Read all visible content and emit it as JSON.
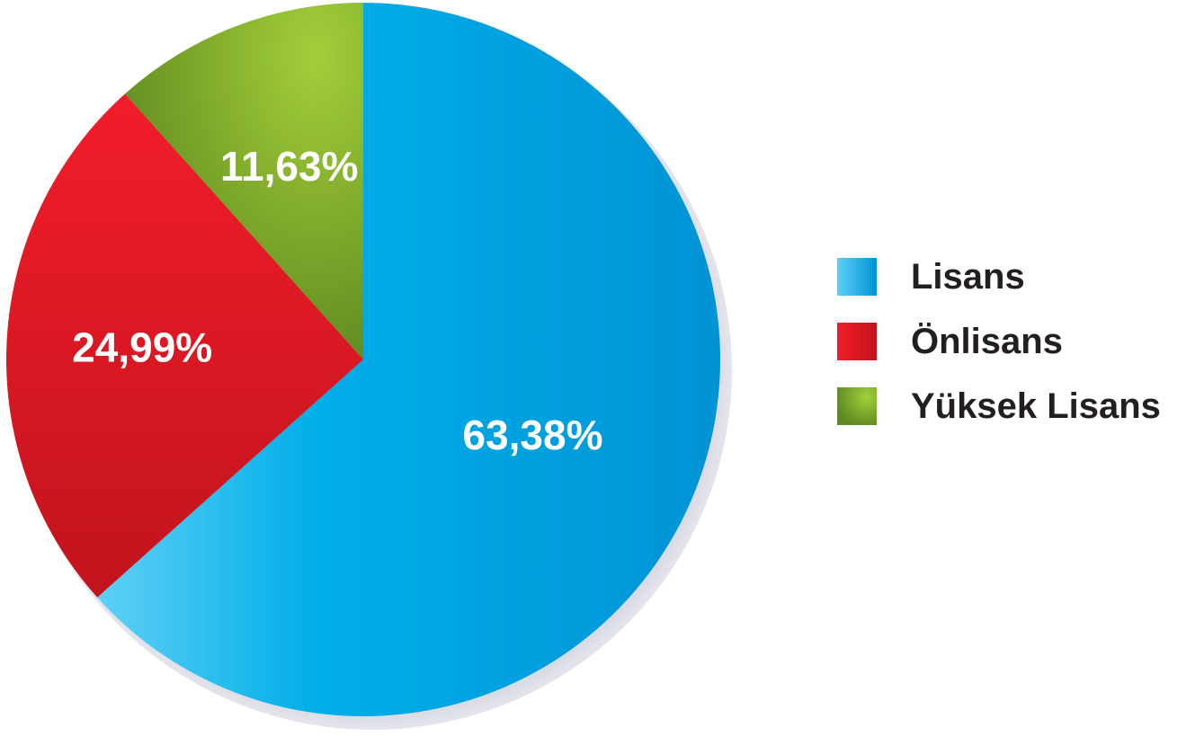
{
  "chart_data": {
    "type": "pie",
    "categories": [
      "Lisans",
      "Önlisans",
      "Yüksek Lisans"
    ],
    "values": [
      63.38,
      24.99,
      11.63
    ],
    "value_labels": [
      "63,38%",
      "24,99%",
      "11,63%"
    ],
    "title": "",
    "legend_position": "right",
    "start_angle": "12 o'clock, clockwise",
    "colors": [
      "#009ada",
      "#ed1c24",
      "#8dc63f"
    ]
  }
}
